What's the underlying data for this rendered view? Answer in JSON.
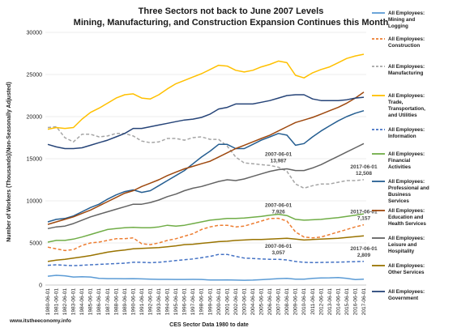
{
  "chart_data": {
    "type": "line",
    "title": "Three Sectors not back to June 2007 Levels",
    "subtitle": "Mining, Manufacturing, and Construction Expansion Continues this Month",
    "ylabel": "Number of Workers (Thousands)(Non-Seasonally Adjusted)",
    "xlabel": "CES Sector Data 1980 to date",
    "ylim": [
      0,
      30000
    ],
    "yticks": [
      0,
      5000,
      10000,
      15000,
      20000,
      25000,
      30000
    ],
    "grid": true,
    "legend_position": "right",
    "source_text": "www.itstheeconomy.info",
    "x": [
      "1980-06-01",
      "1981-06-01",
      "1982-06-01",
      "1983-06-01",
      "1984-06-01",
      "1985-06-01",
      "1986-06-01",
      "1987-06-01",
      "1988-06-01",
      "1989-06-01",
      "1990-06-01",
      "1991-06-01",
      "1992-06-01",
      "1993-06-01",
      "1994-06-01",
      "1995-06-01",
      "1996-06-01",
      "1997-06-01",
      "1998-06-01",
      "1999-06-01",
      "2000-06-01",
      "2001-06-01",
      "2002-06-01",
      "2003-06-01",
      "2004-06-01",
      "2005-06-01",
      "2006-06-01",
      "2007-06-01",
      "2008-06-01",
      "2009-06-01",
      "2010-06-01",
      "2011-06-01",
      "2012-06-01",
      "2013-06-01",
      "2014-06-01",
      "2015-06-01",
      "2016-06-01",
      "2017-06-01"
    ],
    "series": [
      {
        "name": "All Employees: Mining and Logging",
        "color": "#5b9bd5",
        "dash": "solid",
        "values": [
          1050,
          1150,
          1100,
          950,
          980,
          950,
          800,
          760,
          760,
          740,
          760,
          730,
          690,
          670,
          670,
          660,
          660,
          670,
          660,
          600,
          610,
          620,
          590,
          570,
          590,
          630,
          690,
          760,
          800,
          700,
          700,
          790,
          850,
          860,
          890,
          790,
          650,
          690
        ]
      },
      {
        "name": "All Employees: Construction",
        "color": "#ed7d31",
        "dash": "dash",
        "values": [
          4500,
          4300,
          4100,
          4200,
          4700,
          5000,
          5100,
          5300,
          5500,
          5500,
          5600,
          4900,
          4800,
          5000,
          5300,
          5500,
          5800,
          6100,
          6600,
          6900,
          7100,
          7100,
          6900,
          7000,
          7300,
          7600,
          7900,
          7926,
          7600,
          6300,
          5700,
          5600,
          5700,
          6000,
          6300,
          6600,
          6900,
          7157
        ]
      },
      {
        "name": "All Employees: Manufacturing",
        "color": "#a5a5a5",
        "dash": "dash",
        "values": [
          18700,
          18800,
          17500,
          17000,
          17900,
          17900,
          17600,
          17700,
          18000,
          18000,
          17700,
          17100,
          16900,
          17000,
          17400,
          17400,
          17200,
          17500,
          17600,
          17300,
          17300,
          16500,
          15200,
          14500,
          14400,
          14300,
          14200,
          13987,
          13500,
          12000,
          11500,
          11800,
          12000,
          12000,
          12200,
          12400,
          12400,
          12508
        ]
      },
      {
        "name": "All Employees: Trade, Transportation, and Utilities",
        "color": "#ffc000",
        "dash": "solid",
        "values": [
          18500,
          18700,
          18600,
          18700,
          19700,
          20500,
          21000,
          21600,
          22200,
          22600,
          22700,
          22200,
          22100,
          22600,
          23300,
          23900,
          24300,
          24700,
          25100,
          25600,
          26100,
          26000,
          25500,
          25300,
          25500,
          25900,
          26200,
          26600,
          26400,
          24900,
          24600,
          25200,
          25600,
          25900,
          26400,
          26900,
          27200,
          27400
        ]
      },
      {
        "name": "All Employees: Information",
        "color": "#4472c4",
        "dash": "dash",
        "values": [
          2350,
          2400,
          2350,
          2300,
          2350,
          2400,
          2450,
          2500,
          2550,
          2600,
          2700,
          2700,
          2650,
          2700,
          2800,
          2900,
          3000,
          3100,
          3250,
          3400,
          3630,
          3630,
          3400,
          3200,
          3150,
          3100,
          3057,
          3057,
          2980,
          2800,
          2700,
          2660,
          2680,
          2700,
          2720,
          2750,
          2780,
          2809
        ]
      },
      {
        "name": "All Employees: Financial Activities",
        "color": "#70ad47",
        "dash": "solid",
        "values": [
          5100,
          5300,
          5300,
          5450,
          5700,
          6000,
          6300,
          6600,
          6700,
          6800,
          6850,
          6800,
          6800,
          6900,
          7100,
          7000,
          7100,
          7300,
          7500,
          7700,
          7800,
          7900,
          7900,
          7950,
          8050,
          8150,
          8300,
          8400,
          8250,
          7800,
          7700,
          7750,
          7800,
          7900,
          8000,
          8150,
          8300,
          8450
        ]
      },
      {
        "name": "All Employees: Professional and Business Services",
        "color": "#255e91",
        "dash": "solid",
        "values": [
          7500,
          7800,
          7900,
          8200,
          8700,
          9200,
          9600,
          10200,
          10700,
          11100,
          11300,
          11000,
          11200,
          11800,
          12400,
          13000,
          13600,
          14400,
          15200,
          15900,
          16700,
          16700,
          16200,
          16200,
          16700,
          17200,
          17600,
          18000,
          17800,
          16600,
          16800,
          17600,
          18300,
          18900,
          19500,
          20000,
          20400,
          20700
        ]
      },
      {
        "name": "All Employees: Education and Health Services",
        "color": "#9e480e",
        "dash": "solid",
        "values": [
          7200,
          7500,
          7800,
          8100,
          8500,
          8900,
          9400,
          9900,
          10400,
          10900,
          11200,
          11700,
          12100,
          12500,
          13000,
          13400,
          13800,
          14100,
          14400,
          14700,
          15200,
          15700,
          16200,
          16600,
          17000,
          17400,
          17800,
          18300,
          18800,
          19300,
          19600,
          19900,
          20300,
          20700,
          21100,
          21600,
          22200,
          22900
        ]
      },
      {
        "name": "All Employees: Leisure and Hospitality",
        "color": "#636363",
        "dash": "solid",
        "values": [
          6700,
          6900,
          7000,
          7300,
          7700,
          8100,
          8400,
          8700,
          9000,
          9300,
          9600,
          9600,
          9800,
          10100,
          10500,
          10800,
          11200,
          11500,
          11700,
          12000,
          12300,
          12500,
          12400,
          12600,
          12900,
          13200,
          13500,
          13700,
          13800,
          13600,
          13600,
          13900,
          14300,
          14800,
          15300,
          15800,
          16300,
          16800
        ]
      },
      {
        "name": "All Employees: Other Services",
        "color": "#997300",
        "dash": "solid",
        "values": [
          2800,
          2950,
          3050,
          3200,
          3350,
          3500,
          3700,
          3900,
          4050,
          4150,
          4300,
          4350,
          4400,
          4450,
          4550,
          4650,
          4800,
          4850,
          4950,
          5050,
          5150,
          5200,
          5300,
          5350,
          5400,
          5400,
          5450,
          5500,
          5550,
          5450,
          5350,
          5400,
          5450,
          5500,
          5550,
          5650,
          5750,
          5850
        ]
      },
      {
        "name": "All Employees: Government",
        "color": "#264478",
        "dash": "solid",
        "values": [
          16700,
          16400,
          16200,
          16200,
          16300,
          16600,
          16900,
          17200,
          17600,
          18000,
          18600,
          18600,
          18800,
          19000,
          19200,
          19400,
          19600,
          19700,
          19900,
          20300,
          20900,
          21100,
          21500,
          21500,
          21500,
          21700,
          21900,
          22200,
          22500,
          22600,
          22600,
          22100,
          21900,
          21900,
          21900,
          22000,
          22200,
          22300
        ]
      }
    ],
    "annotations": [
      {
        "label": "2007-06-01",
        "value": "13,987",
        "x": "2007-06-01",
        "y": 13987
      },
      {
        "label": "2007-06-01",
        "value": "7,926",
        "x": "2007-06-01",
        "y": 7926
      },
      {
        "label": "2007-06-01",
        "value": "3,057",
        "x": "2007-06-01",
        "y": 3057
      },
      {
        "label": "2017-06-01",
        "value": "12,508",
        "x": "2017-06-01",
        "y": 12508
      },
      {
        "label": "2017-06-01",
        "value": "7,157",
        "x": "2017-06-01",
        "y": 7157
      },
      {
        "label": "2017-06-01",
        "value": "2,809",
        "x": "2017-06-01",
        "y": 2809
      }
    ]
  }
}
